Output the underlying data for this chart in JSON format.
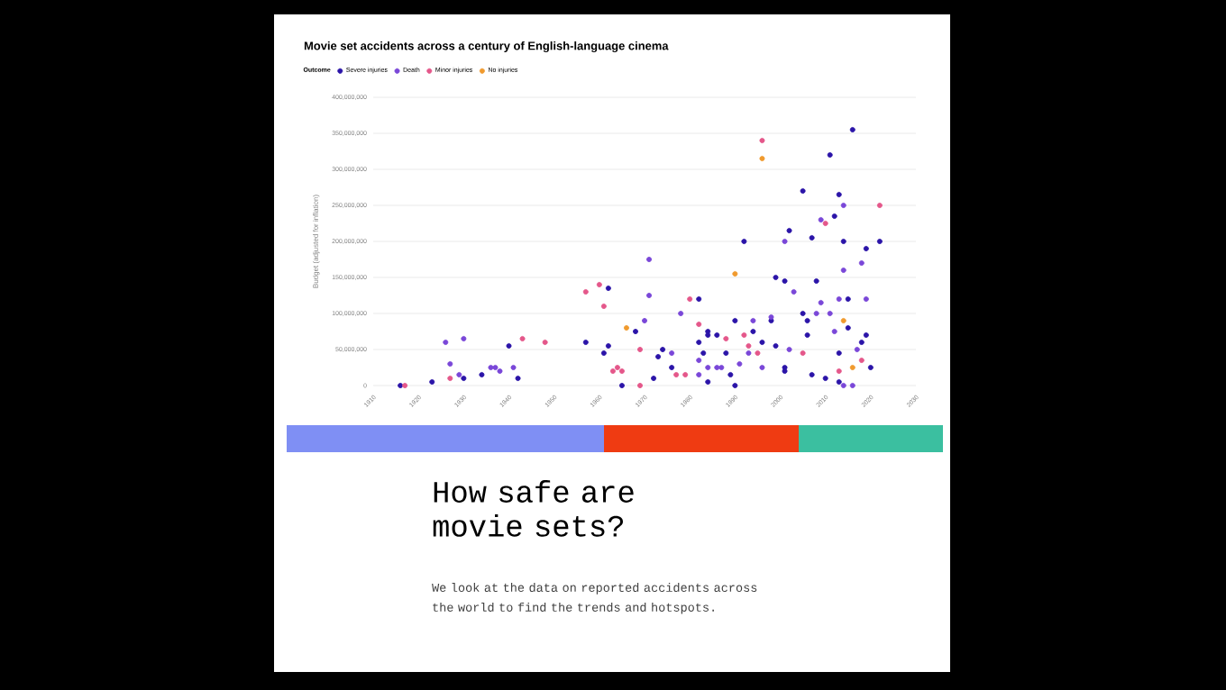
{
  "chart_data": {
    "type": "scatter",
    "title": "Movie set accidents across a century of English-language cinema",
    "ylabel": "Budget (adjusted for inflation)",
    "legend_title": "Outcome",
    "legend": "top left",
    "grid": "y",
    "marker": "circle",
    "xlim": [
      1910,
      2030
    ],
    "xticks": [
      1910,
      1920,
      1930,
      1940,
      1950,
      1960,
      1970,
      1980,
      1990,
      2000,
      2010,
      2020,
      2030
    ],
    "ylim": [
      0,
      400000000
    ],
    "yticks": [
      0,
      {
        "value": 50000000,
        "label": "50,000,000"
      },
      {
        "value": 100000000,
        "label": "100,000,000"
      },
      {
        "value": 150000000,
        "label": "150,000,000"
      },
      {
        "value": 200000000,
        "label": "200,000,000"
      },
      {
        "value": 250000000,
        "label": "250,000,000"
      },
      {
        "value": 300000000,
        "label": "300,000,000"
      },
      {
        "value": 350000000,
        "label": "350,000,000"
      },
      {
        "value": 400000000,
        "label": "400,000,000"
      }
    ],
    "annotations": [
      "How safe are movie sets?",
      "We look at the data on reported accidents across the world to find the trends and hotspots."
    ],
    "series": [
      {
        "name": "Severe injuries",
        "color": "#2b14a8",
        "x": [
          1916,
          1923,
          1930,
          1934,
          1940,
          1942,
          1957,
          1961,
          1962,
          1962,
          1965,
          1968,
          1972,
          1973,
          1974,
          1976,
          1982,
          1984,
          1984,
          1986,
          1982,
          1983,
          1984,
          1988,
          1989,
          1990,
          1990,
          1992,
          1994,
          1996,
          1998,
          1999,
          1999,
          2001,
          2001,
          2001,
          2002,
          2005,
          2005,
          2006,
          2006,
          2007,
          2007,
          2008,
          2010,
          2011,
          2012,
          2013,
          2013,
          2014,
          2013,
          2015,
          2015,
          2016,
          2018,
          2019,
          2019,
          2020,
          2022
        ],
        "values": [
          0,
          5000000,
          10000000,
          15000000,
          55000000,
          10000000,
          60000000,
          45000000,
          55000000,
          135000000,
          0,
          75000000,
          10000000,
          40000000,
          50000000,
          25000000,
          120000000,
          70000000,
          75000000,
          70000000,
          60000000,
          45000000,
          5000000,
          45000000,
          15000000,
          0,
          90000000,
          200000000,
          75000000,
          60000000,
          90000000,
          150000000,
          55000000,
          145000000,
          25000000,
          20000000,
          215000000,
          270000000,
          100000000,
          90000000,
          70000000,
          205000000,
          15000000,
          145000000,
          10000000,
          320000000,
          235000000,
          265000000,
          45000000,
          200000000,
          5000000,
          80000000,
          120000000,
          355000000,
          60000000,
          190000000,
          70000000,
          25000000,
          200000000
        ]
      },
      {
        "name": "Death",
        "color": "#7a47d8",
        "x": [
          1926,
          1927,
          1929,
          1930,
          1936,
          1937,
          1938,
          1941,
          1971,
          1971,
          1970,
          1976,
          1978,
          1982,
          1984,
          1986,
          1987,
          1982,
          1991,
          1994,
          1993,
          1996,
          1998,
          2001,
          2002,
          2003,
          2008,
          2009,
          2009,
          2011,
          2012,
          2013,
          2014,
          2014,
          2014,
          2016,
          2017,
          2018,
          2019
        ],
        "values": [
          60000000,
          30000000,
          15000000,
          65000000,
          25000000,
          25000000,
          20000000,
          25000000,
          175000000,
          125000000,
          90000000,
          45000000,
          100000000,
          35000000,
          25000000,
          25000000,
          25000000,
          15000000,
          30000000,
          90000000,
          45000000,
          25000000,
          95000000,
          200000000,
          50000000,
          130000000,
          100000000,
          115000000,
          230000000,
          100000000,
          75000000,
          120000000,
          250000000,
          160000000,
          0,
          0,
          50000000,
          170000000,
          120000000
        ]
      },
      {
        "name": "Minor injuries",
        "color": "#e4578a",
        "x": [
          1917,
          1927,
          1943,
          1948,
          1957,
          1960,
          1961,
          1963,
          1964,
          1965,
          1969,
          1969,
          1977,
          1979,
          1980,
          1982,
          1988,
          1992,
          1993,
          1995,
          1996,
          2005,
          2010,
          2013,
          2018,
          2022
        ],
        "values": [
          0,
          10000000,
          65000000,
          60000000,
          130000000,
          140000000,
          110000000,
          20000000,
          25000000,
          20000000,
          50000000,
          0,
          15000000,
          15000000,
          120000000,
          85000000,
          65000000,
          70000000,
          55000000,
          45000000,
          340000000,
          45000000,
          225000000,
          20000000,
          35000000,
          250000000
        ]
      },
      {
        "name": "No injuries",
        "color": "#f09a2e",
        "x": [
          1966,
          1990,
          1996,
          2014,
          2016
        ],
        "values": [
          80000000,
          155000000,
          315000000,
          90000000,
          25000000
        ]
      }
    ]
  }
}
